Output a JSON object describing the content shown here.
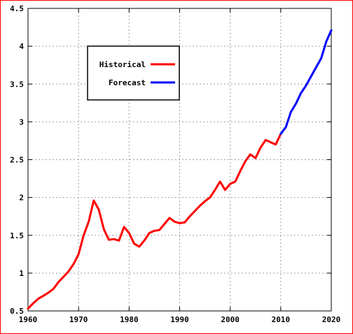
{
  "chart_data": {
    "type": "line",
    "title": "",
    "xlabel": "",
    "ylabel": "",
    "xlim": [
      1960,
      2020
    ],
    "ylim": [
      0.5,
      4.5
    ],
    "x_ticks": [
      "1960",
      "1970",
      "1980",
      "1990",
      "2000",
      "2010",
      "2020"
    ],
    "y_ticks": [
      "0.5",
      "1",
      "1.5",
      "2",
      "2.5",
      "3",
      "3.5",
      "4",
      "4.5"
    ],
    "grid": true,
    "legend_position": "top-left",
    "series": [
      {
        "name": "Historical",
        "color": "#ff0000",
        "points": [
          [
            1960,
            0.53
          ],
          [
            1961,
            0.6
          ],
          [
            1962,
            0.66
          ],
          [
            1963,
            0.7
          ],
          [
            1964,
            0.74
          ],
          [
            1965,
            0.79
          ],
          [
            1966,
            0.88
          ],
          [
            1967,
            0.95
          ],
          [
            1968,
            1.02
          ],
          [
            1969,
            1.12
          ],
          [
            1970,
            1.25
          ],
          [
            1971,
            1.5
          ],
          [
            1972,
            1.68
          ],
          [
            1973,
            1.96
          ],
          [
            1974,
            1.84
          ],
          [
            1975,
            1.58
          ],
          [
            1976,
            1.44
          ],
          [
            1977,
            1.45
          ],
          [
            1978,
            1.43
          ],
          [
            1979,
            1.61
          ],
          [
            1980,
            1.53
          ],
          [
            1981,
            1.39
          ],
          [
            1982,
            1.35
          ],
          [
            1983,
            1.43
          ],
          [
            1984,
            1.53
          ],
          [
            1985,
            1.56
          ],
          [
            1986,
            1.57
          ],
          [
            1987,
            1.65
          ],
          [
            1988,
            1.73
          ],
          [
            1989,
            1.68
          ],
          [
            1990,
            1.66
          ],
          [
            1991,
            1.67
          ],
          [
            1992,
            1.75
          ],
          [
            1993,
            1.82
          ],
          [
            1994,
            1.89
          ],
          [
            1995,
            1.95
          ],
          [
            1996,
            2.0
          ],
          [
            1997,
            2.1
          ],
          [
            1998,
            2.21
          ],
          [
            1999,
            2.1
          ],
          [
            2000,
            2.18
          ],
          [
            2001,
            2.21
          ],
          [
            2002,
            2.35
          ],
          [
            2003,
            2.48
          ],
          [
            2004,
            2.57
          ],
          [
            2005,
            2.52
          ],
          [
            2006,
            2.66
          ],
          [
            2007,
            2.76
          ],
          [
            2008,
            2.73
          ],
          [
            2009,
            2.7
          ],
          [
            2010,
            2.84
          ]
        ]
      },
      {
        "name": "Forecast",
        "color": "#0000ff",
        "points": [
          [
            2010,
            2.84
          ],
          [
            2011,
            2.93
          ],
          [
            2012,
            3.13
          ],
          [
            2013,
            3.24
          ],
          [
            2014,
            3.38
          ],
          [
            2015,
            3.48
          ],
          [
            2016,
            3.6
          ],
          [
            2017,
            3.72
          ],
          [
            2018,
            3.84
          ],
          [
            2019,
            4.06
          ],
          [
            2020,
            4.21
          ]
        ]
      }
    ]
  }
}
